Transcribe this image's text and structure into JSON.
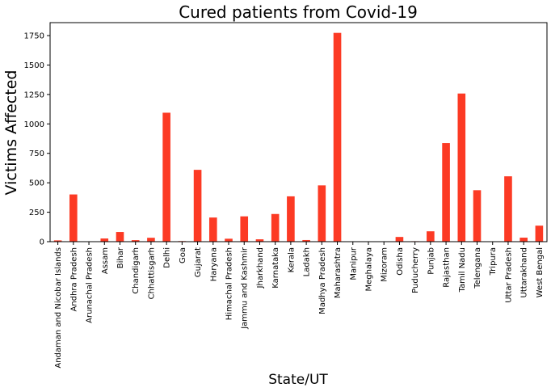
{
  "chart_data": {
    "type": "bar",
    "title": "Cured patients from Covid-19",
    "xlabel": "State/UT",
    "ylabel": "Victims Affected",
    "ylim": [
      0,
      1860
    ],
    "yticks": [
      0,
      250,
      500,
      750,
      1000,
      1250,
      1500,
      1750
    ],
    "grid": false,
    "bar_color": "#fc3a24",
    "categories": [
      "Andaman and Nicobar Islands",
      "Andhra Pradesh",
      "Arunachal Pradesh",
      "Assam",
      "Bihar",
      "Chandigarh",
      "Chhattisgarh",
      "Delhi",
      "Goa",
      "Gujarat",
      "Haryana",
      "Himachal Pradesh",
      "Jammu and Kashmir",
      "Jharkhand",
      "Karnataka",
      "Kerala",
      "Ladakh",
      "Madhya Pradesh",
      "Maharashtra",
      "Manipur",
      "Meghalaya",
      "Mizoram",
      "Odisha",
      "Puducherry",
      "Punjab",
      "Rajasthan",
      "Tamil Nadu",
      "Telengana",
      "Tripura",
      "Uttar Pradesh",
      "Uttarakhand",
      "West Bengal"
    ],
    "values": [
      11,
      401,
      0,
      27,
      82,
      13,
      33,
      1095,
      5,
      610,
      205,
      25,
      215,
      20,
      235,
      385,
      14,
      478,
      1773,
      1,
      0,
      0,
      40,
      4,
      88,
      837,
      1258,
      437,
      1,
      555,
      34,
      136
    ]
  }
}
